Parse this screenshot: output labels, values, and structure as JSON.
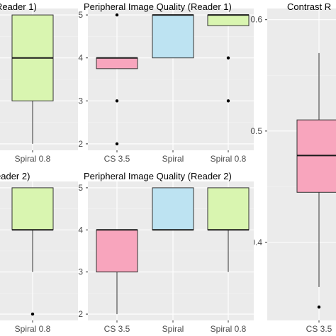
{
  "colors": {
    "panel_bg": "#ebebeb",
    "grid_major": "#ffffff",
    "grid_minor": "#f4f4f4",
    "CS 3.5": "#f8a5bd",
    "Spiral": "#bde3f2",
    "Spiral 0.8": "#d9f5b0"
  },
  "chart_data": [
    {
      "type": "boxplot",
      "title": "Reader 1)",
      "categories": [
        "Spiral 0.8"
      ],
      "ylim": [
        1.85,
        5.15
      ],
      "yticks": [],
      "grid": true,
      "boxes": [
        {
          "category": "Spiral 0.8",
          "lower_whisker": 2,
          "q1": 3,
          "median": 4,
          "q3": 5,
          "upper_whisker": 5,
          "outliers": []
        }
      ]
    },
    {
      "type": "boxplot",
      "title": "Peripheral Image Quality (Reader 1)",
      "categories": [
        "CS 3.5",
        "Spiral",
        "Spiral 0.8"
      ],
      "ylim": [
        1.85,
        5.15
      ],
      "yticks": [
        "2",
        "3",
        "4",
        "5"
      ],
      "grid": true,
      "boxes": [
        {
          "category": "CS 3.5",
          "lower_whisker": 3.75,
          "q1": 3.75,
          "median": 4,
          "q3": 4,
          "upper_whisker": 4,
          "outliers": [
            5,
            3,
            2
          ]
        },
        {
          "category": "Spiral",
          "lower_whisker": 4,
          "q1": 4,
          "median": 5,
          "q3": 5,
          "upper_whisker": 5,
          "outliers": []
        },
        {
          "category": "Spiral 0.8",
          "lower_whisker": 4.75,
          "q1": 4.75,
          "median": 5,
          "q3": 5,
          "upper_whisker": 5,
          "outliers": [
            4,
            3
          ]
        }
      ]
    },
    {
      "type": "boxplot",
      "title": "Contrast R",
      "categories": [
        "CS 3.5"
      ],
      "ylim": [
        0.33,
        0.61
      ],
      "yticks": [
        "0.4",
        "0.5",
        "0.6"
      ],
      "grid": true,
      "boxes": [
        {
          "category": "CS 3.5",
          "lower_whisker": 0.36,
          "q1": 0.445,
          "median": 0.478,
          "q3": 0.51,
          "upper_whisker": 0.57,
          "outliers": [
            0.342
          ]
        }
      ]
    },
    {
      "type": "boxplot",
      "title": "eader 2)",
      "categories": [
        "Spiral 0.8"
      ],
      "ylim": [
        1.85,
        5.15
      ],
      "yticks": [],
      "grid": true,
      "boxes": [
        {
          "category": "Spiral 0.8",
          "lower_whisker": 3,
          "q1": 4,
          "median": 4,
          "q3": 5,
          "upper_whisker": 5,
          "outliers": [
            2
          ]
        }
      ]
    },
    {
      "type": "boxplot",
      "title": "Peripheral Image Quality (Reader 2)",
      "categories": [
        "CS 3.5",
        "Spiral",
        "Spiral 0.8"
      ],
      "ylim": [
        1.85,
        5.15
      ],
      "yticks": [
        "2",
        "3",
        "4",
        "5"
      ],
      "grid": true,
      "boxes": [
        {
          "category": "CS 3.5",
          "lower_whisker": 2,
          "q1": 3,
          "median": 4,
          "q3": 4,
          "upper_whisker": 4,
          "outliers": []
        },
        {
          "category": "Spiral",
          "lower_whisker": 4,
          "q1": 4,
          "median": 4,
          "q3": 5,
          "upper_whisker": 5,
          "outliers": []
        },
        {
          "category": "Spiral 0.8",
          "lower_whisker": 3,
          "q1": 4,
          "median": 4,
          "q3": 5,
          "upper_whisker": 5,
          "outliers": []
        }
      ]
    }
  ]
}
